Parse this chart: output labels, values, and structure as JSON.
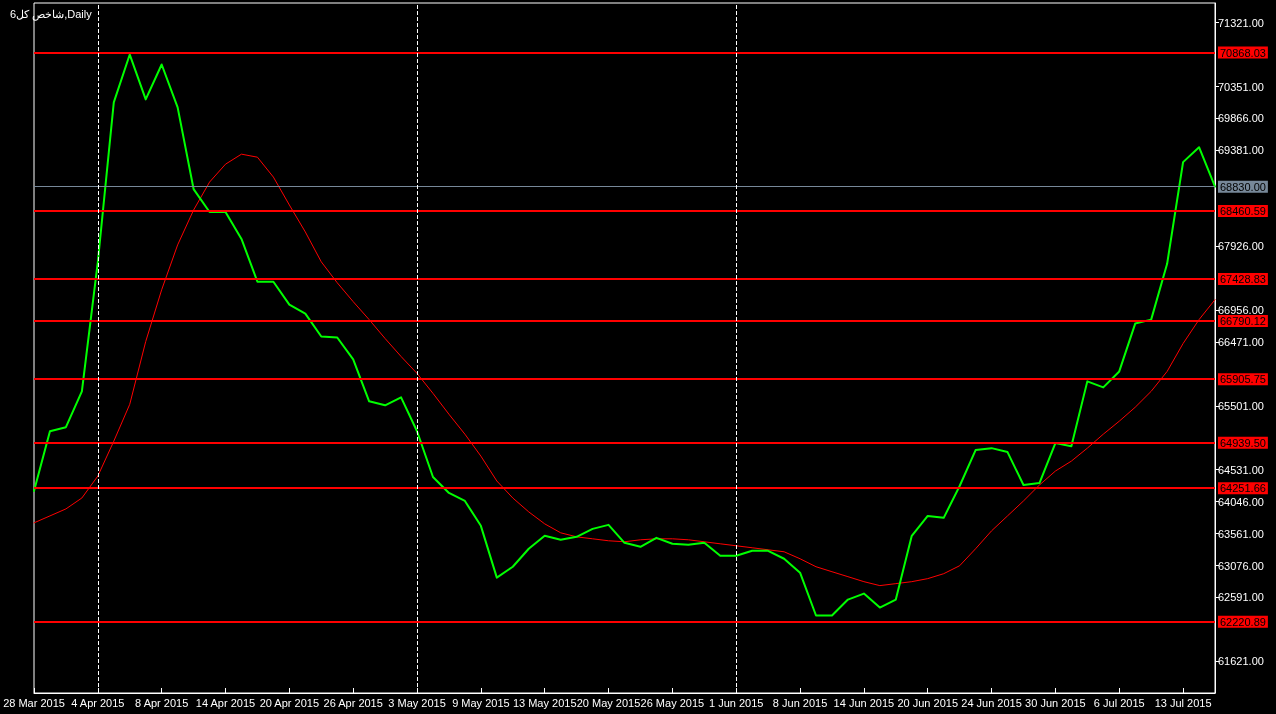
{
  "chart_data": {
    "type": "line",
    "title": "شاخص کل6,Daily",
    "categories": [
      "28 Mar 2015",
      null,
      null,
      null,
      "4 Apr 2015",
      null,
      null,
      null,
      "8 Apr 2015",
      null,
      null,
      null,
      "14 Apr 2015",
      null,
      null,
      null,
      "20 Apr 2015",
      null,
      null,
      null,
      "26 Apr 2015",
      null,
      null,
      null,
      "3 May 2015",
      null,
      null,
      null,
      "9 May 2015",
      null,
      null,
      null,
      "13 May 2015",
      null,
      null,
      null,
      "20 May 2015",
      null,
      null,
      null,
      "26 May 2015",
      null,
      null,
      null,
      "1 Jun 2015",
      null,
      null,
      null,
      "8 Jun 2015",
      null,
      null,
      null,
      "14 Jun 2015",
      null,
      null,
      null,
      "20 Jun 2015",
      null,
      null,
      null,
      "24 Jun 2015",
      null,
      null,
      null,
      "30 Jun 2015",
      null,
      null,
      null,
      "6 Jul 2015",
      null,
      null,
      null,
      "13 Jul 2015",
      null,
      null
    ],
    "series": [
      {
        "color": "#00ff00",
        "values": [
          64208,
          65116,
          65177,
          65722,
          67689,
          70111,
          70837,
          70156,
          70686,
          70035,
          68794,
          68446,
          68446,
          68037,
          67386,
          67386,
          67038,
          66902,
          66554,
          66539,
          66206,
          65570,
          65510,
          65631,
          65116,
          64420,
          64178,
          64057,
          63679,
          62892,
          63058,
          63331,
          63527,
          63467,
          63512,
          63633,
          63694,
          63421,
          63361,
          63497,
          63406,
          63391,
          63421,
          63225,
          63225,
          63300,
          63300,
          63179,
          62967,
          62317,
          62317,
          62559,
          62650,
          62438,
          62559,
          63527,
          63830,
          63800,
          64284,
          64829,
          64859,
          64799,
          64299,
          64329,
          64935,
          64889,
          65873,
          65782,
          66024,
          66751,
          66811,
          67659,
          69203,
          69430,
          68830
        ]
      },
      {
        "color": "#ff0000",
        "values": [
          63724,
          63830,
          63936,
          64102,
          64435,
          64965,
          65525,
          66478,
          67265,
          67946,
          68476,
          68900,
          69172,
          69324,
          69278,
          68976,
          68552,
          68143,
          67689,
          67371,
          67084,
          66811,
          66524,
          66251,
          65994,
          65691,
          65374,
          65071,
          64738,
          64360,
          64102,
          63891,
          63709,
          63573,
          63512,
          63482,
          63452,
          63437,
          63467,
          63482,
          63482,
          63467,
          63437,
          63406,
          63376,
          63346,
          63315,
          63285,
          63179,
          63058,
          62982,
          62907,
          62831,
          62771,
          62801,
          62831,
          62877,
          62952,
          63073,
          63331,
          63603,
          63830,
          64057,
          64299,
          64511,
          64662,
          64859,
          65071,
          65268,
          65480,
          65722,
          66024,
          66448,
          66811,
          67114
        ]
      }
    ],
    "ylim": [
      61140,
      71620
    ],
    "yticks": [
      {
        "value": 71321,
        "label": "71321.00"
      },
      {
        "value": 70351,
        "label": "70351.00"
      },
      {
        "value": 69866,
        "label": "69866.00"
      },
      {
        "value": 69381,
        "label": "69381.00"
      },
      {
        "value": 67926,
        "label": "67926.00"
      },
      {
        "value": 66956,
        "label": "66956.00"
      },
      {
        "value": 66471,
        "label": "66471.00"
      },
      {
        "value": 65501,
        "label": "65501.00"
      },
      {
        "value": 64531,
        "label": "64531.00"
      },
      {
        "value": 64046,
        "label": "64046.00"
      },
      {
        "value": 63561,
        "label": "63561.00"
      },
      {
        "value": 63076,
        "label": "63076.00"
      },
      {
        "value": 62591,
        "label": "62591.00"
      },
      {
        "value": 61621,
        "label": "61621.00"
      }
    ],
    "ref_lines": [
      {
        "axis": "y",
        "value": 70868.03,
        "label": "70868.03",
        "color": "#ff0000"
      },
      {
        "axis": "y",
        "value": 68830.0,
        "label": "68830.00",
        "color": "#778899"
      },
      {
        "axis": "y",
        "value": 68460.59,
        "label": "68460.59",
        "color": "#ff0000"
      },
      {
        "axis": "y",
        "value": 67428.83,
        "label": "67428.83",
        "color": "#ff0000"
      },
      {
        "axis": "y",
        "value": 66790.12,
        "label": "66790.12",
        "color": "#ff0000"
      },
      {
        "axis": "y",
        "value": 65905.75,
        "label": "65905.75",
        "color": "#ff0000"
      },
      {
        "axis": "y",
        "value": 64939.5,
        "label": "64939.50",
        "color": "#ff0000"
      },
      {
        "axis": "y",
        "value": 64251.66,
        "label": "64251.66",
        "color": "#ff0000"
      },
      {
        "axis": "y",
        "value": 62220.89,
        "label": "62220.89",
        "color": "#ff0000"
      },
      {
        "axis": "x",
        "value": "4 Apr 2015",
        "label": null,
        "color": "#ffffff",
        "line_style": "dashed"
      },
      {
        "axis": "x",
        "value": "3 May 2015",
        "label": null,
        "color": "#ffffff",
        "line_style": "dashed"
      },
      {
        "axis": "x",
        "value": "1 Jun 2015",
        "label": null,
        "color": "#ffffff",
        "line_style": "dashed"
      }
    ],
    "grid": false,
    "marker": "none",
    "line_style": "solid"
  }
}
